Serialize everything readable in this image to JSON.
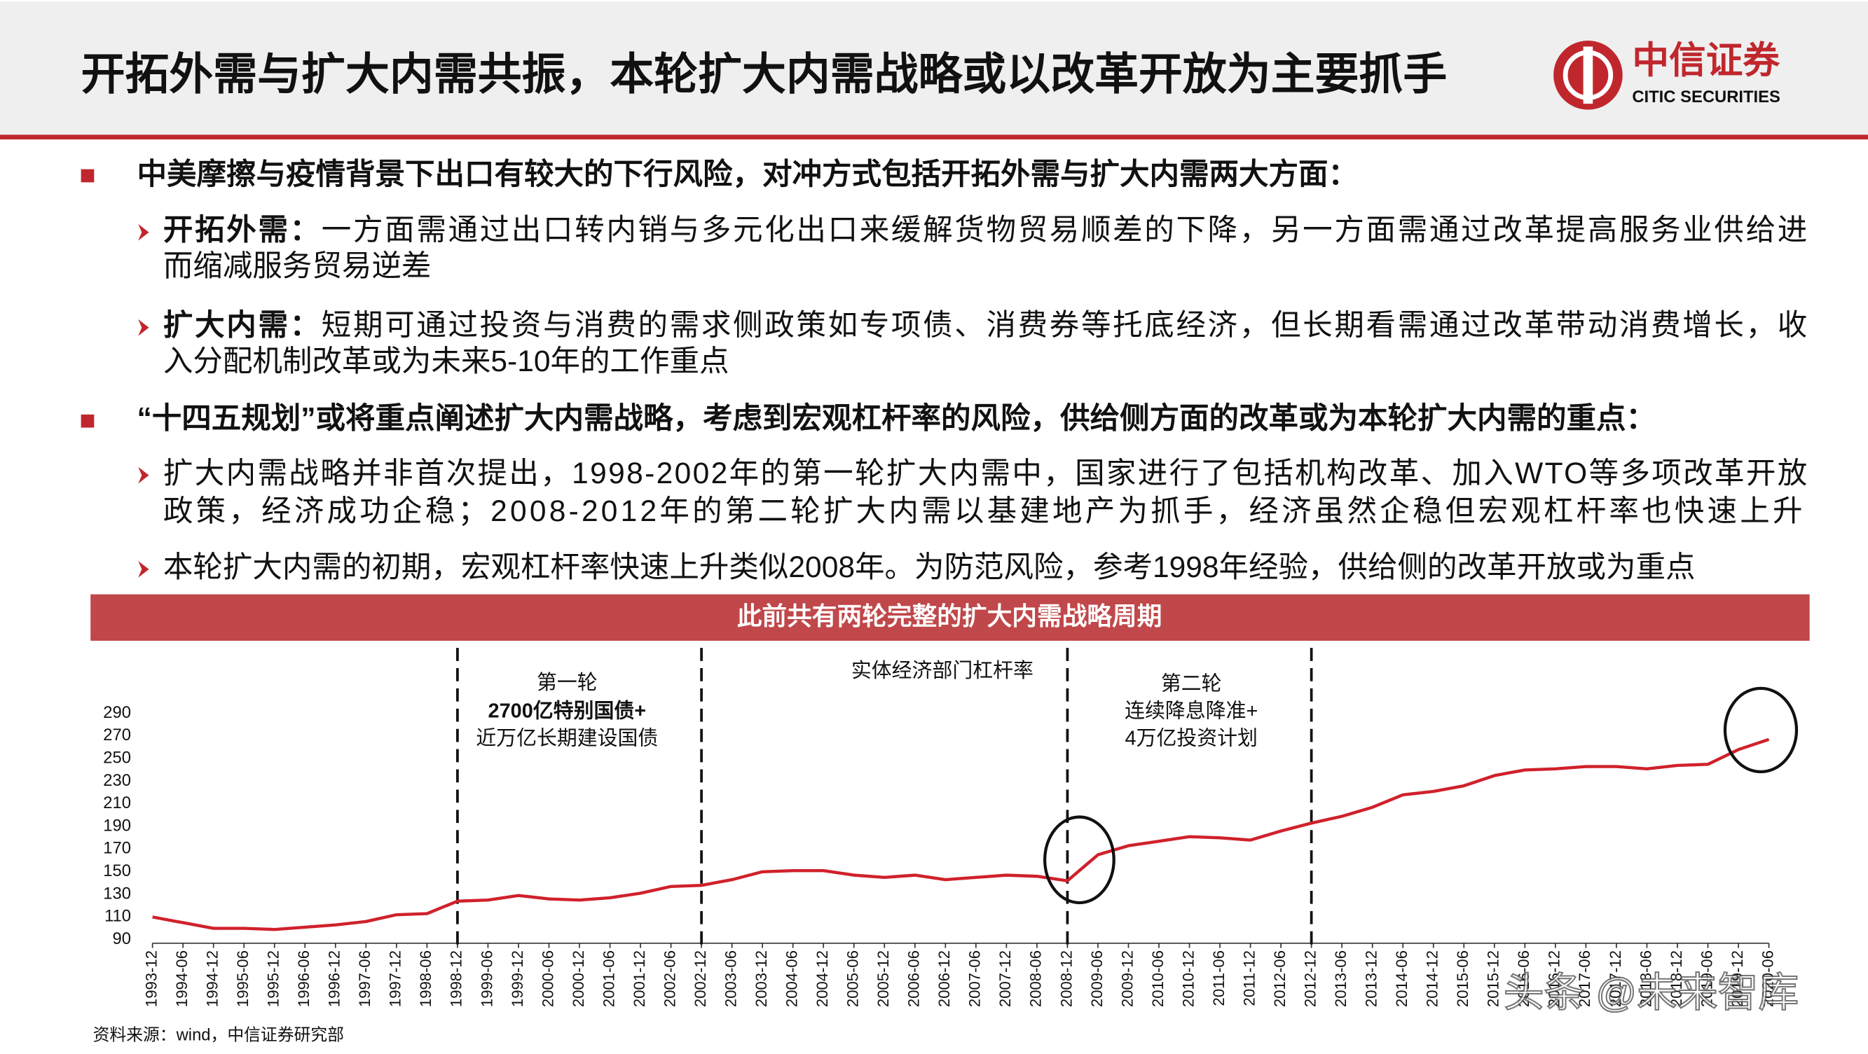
{
  "header": {
    "title": "开拓外需与扩大内需共振，本轮扩大内需战略或以改革开放为主要抓手",
    "logo_cn": "中信证券",
    "logo_en": "CITIC SECURITIES"
  },
  "bullets": [
    {
      "text": "中美摩擦与疫情背景下出口有较大的下行风险，对冲方式包括开拓外需与扩大内需两大方面：",
      "items": [
        {
          "label": "开拓外需：",
          "lines": [
            "一方面需通过出口转内销与多元化出口来缓解货物贸易顺差的下降，另一方面需通过改革提高服务业供给进",
            "而缩减服务贸易逆差"
          ]
        },
        {
          "label": "扩大内需：",
          "lines": [
            "短期可通过投资与消费的需求侧政策如专项债、消费券等托底经济，但长期看需通过改革带动消费增长，收",
            "入分配机制改革或为未来5-10年的工作重点"
          ]
        }
      ]
    },
    {
      "text": "“十四五规划”或将重点阐述扩大内需战略，考虑到宏观杠杆率的风险，供给侧方面的改革或为本轮扩大内需的重点：",
      "items": [
        {
          "lines": [
            "扩大内需战略并非首次提出，1998-2002年的第一轮扩大内需中，国家进行了包括机构改革、加入WTO等多项改革开放",
            "政策，经济成功企稳；2008-2012年的第二轮扩大内需以基建地产为抓手，经济虽然企稳但宏观杠杆率也快速上升"
          ]
        },
        {
          "lines": [
            "本轮扩大内需的初期，宏观杠杆率快速上升类似2008年。为防范风险，参考1998年经验，供给侧的改革开放或为重点"
          ]
        }
      ]
    }
  ],
  "banner": "此前共有两轮完整的扩大内需战略周期",
  "chart_data": {
    "type": "line",
    "title": "实体经济部门杠杆率",
    "annotations": [
      [
        "第一轮",
        "2700亿特别国债+",
        "近万亿长期建设国债"
      ],
      [
        "第二轮",
        "连续降息降准+",
        "4万亿投资计划"
      ]
    ],
    "categories": [
      "1993-12",
      "1994-06",
      "1994-12",
      "1995-06",
      "1995-12",
      "1996-06",
      "1996-12",
      "1997-06",
      "1997-12",
      "1998-06",
      "1998-12",
      "1999-06",
      "1999-12",
      "2000-06",
      "2000-12",
      "2001-06",
      "2001-12",
      "2002-06",
      "2002-12",
      "2003-06",
      "2003-12",
      "2004-06",
      "2004-12",
      "2005-06",
      "2005-12",
      "2006-06",
      "2006-12",
      "2007-06",
      "2007-12",
      "2008-06",
      "2008-12",
      "2009-06",
      "2009-12",
      "2010-06",
      "2010-12",
      "2011-06",
      "2011-12",
      "2012-06",
      "2012-12",
      "2013-06",
      "2013-12",
      "2014-06",
      "2014-12",
      "2015-06",
      "2015-12",
      "2016-06",
      "2016-12",
      "2017-06",
      "2017-12",
      "2018-06",
      "2018-12",
      "2019-06",
      "2019-12",
      "2020-06"
    ],
    "series": [
      {
        "name": "实体经济部门杠杆率",
        "color": "#d0212b",
        "values": [
          110,
          105,
          100,
          100,
          99,
          101,
          103,
          106,
          112,
          113,
          124,
          125,
          129,
          126,
          125,
          127,
          131,
          137,
          138,
          143,
          150,
          151,
          151,
          147,
          145,
          147,
          143,
          145,
          147,
          146,
          142,
          165,
          173,
          177,
          181,
          180,
          178,
          186,
          193,
          199,
          207,
          218,
          221,
          226,
          235,
          240,
          241,
          243,
          243,
          241,
          244,
          245,
          258,
          267
        ]
      }
    ],
    "ylim": [
      90,
      290
    ],
    "yticks": [
      90,
      110,
      130,
      150,
      170,
      190,
      210,
      230,
      250,
      270,
      290
    ]
  },
  "source": "资料来源：wind，中信证券研究部",
  "watermark": "头条 @未来智库"
}
